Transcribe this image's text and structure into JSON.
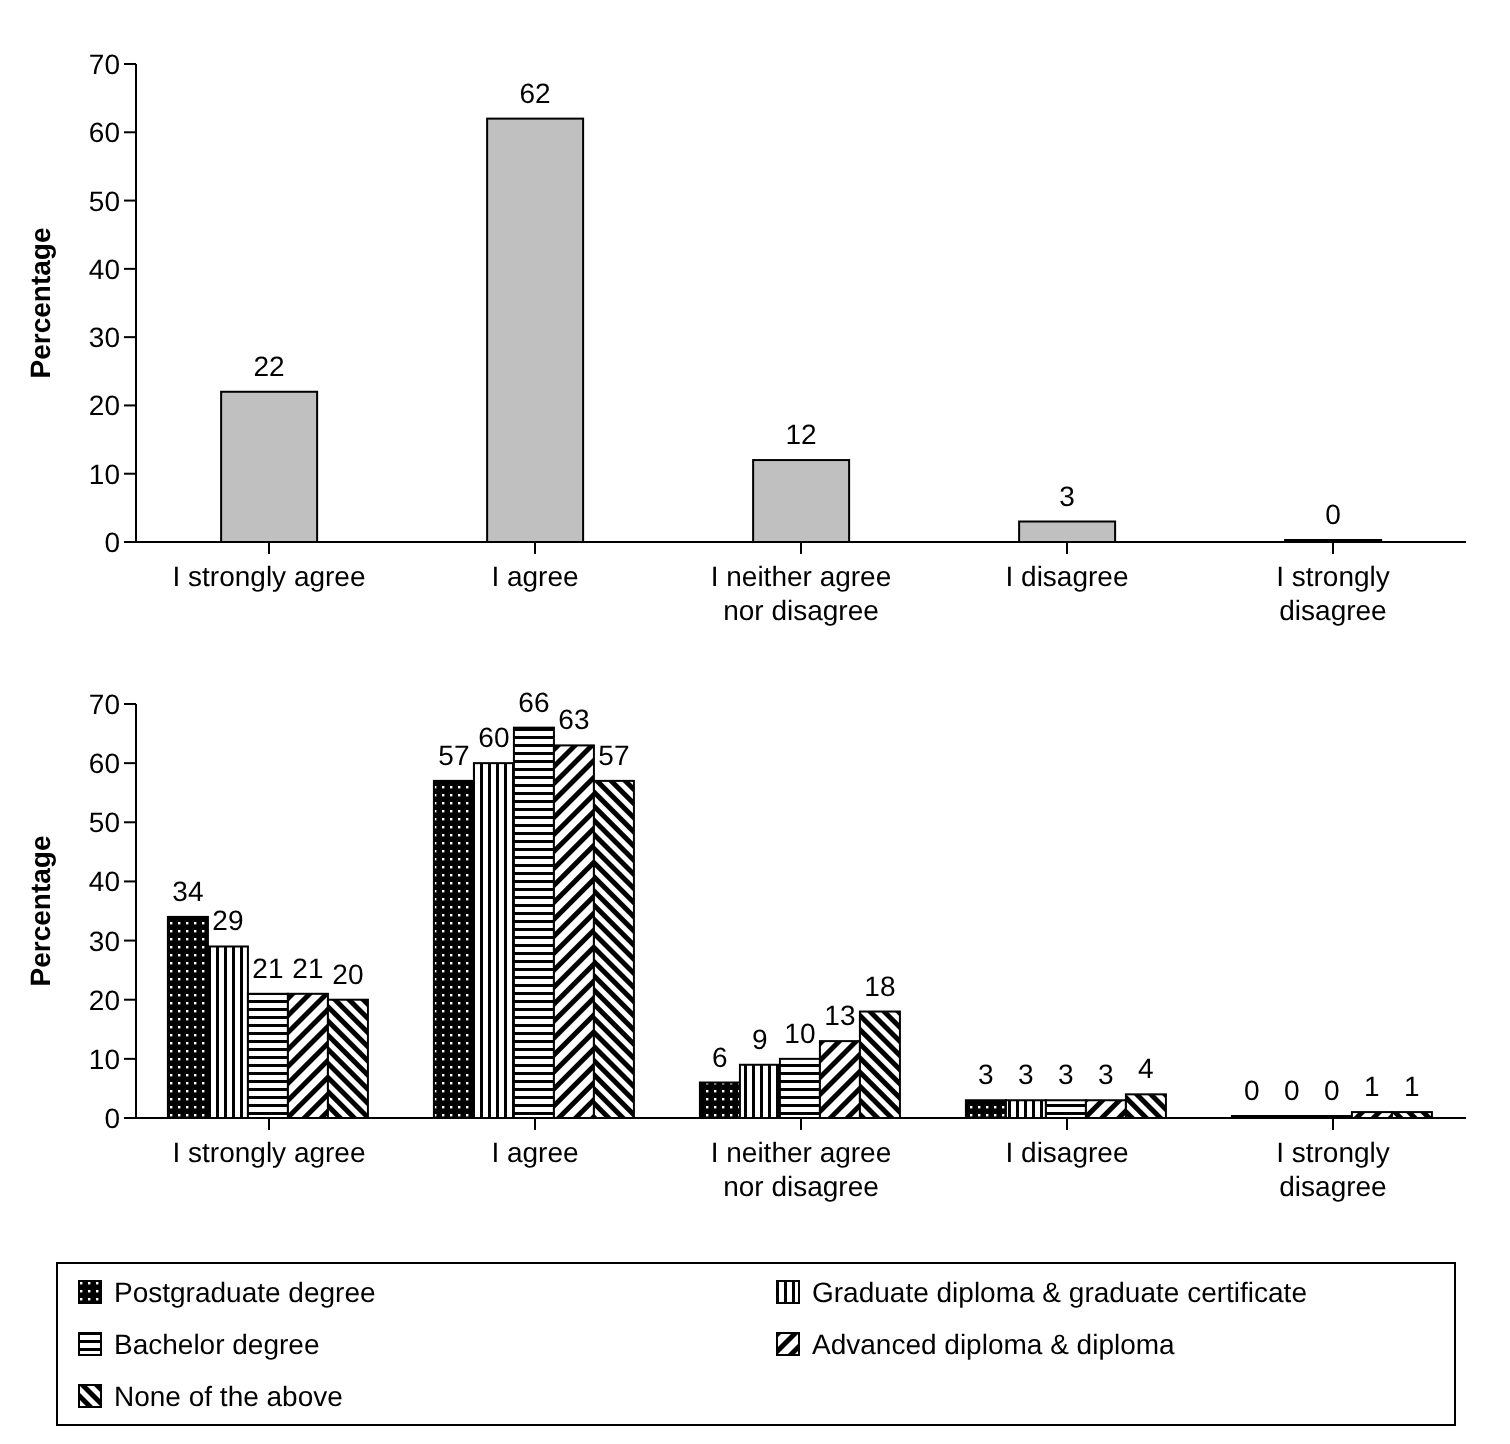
{
  "chart_data": [
    {
      "type": "bar",
      "ylabel": "Percentage",
      "categories": [
        "I strongly agree",
        "I agree",
        "I neither agree nor disagree",
        "I disagree",
        "I strongly disagree"
      ],
      "values": [
        22,
        62,
        12,
        3,
        0
      ],
      "color": "#c0c0c0",
      "ylim": [
        0,
        70
      ],
      "yticks": [
        0,
        10,
        20,
        30,
        40,
        50,
        60,
        70
      ],
      "data_labels": true
    },
    {
      "type": "bar",
      "ylabel": "Percentage",
      "categories": [
        "I strongly agree",
        "I agree",
        "I neither agree nor disagree",
        "I disagree",
        "I strongly disagree"
      ],
      "series": [
        {
          "name": "Postgraduate degree",
          "color": "#000000",
          "values": [
            34,
            57,
            6,
            3,
            0
          ]
        },
        {
          "name": "Graduate diploma & graduate certificate",
          "color": "#000000",
          "values": [
            29,
            60,
            9,
            3,
            0
          ]
        },
        {
          "name": "Bachelor degree",
          "color": "#000000",
          "values": [
            21,
            66,
            10,
            3,
            0
          ]
        },
        {
          "name": "Advanced diploma & diploma",
          "color": "#000000",
          "values": [
            21,
            63,
            13,
            3,
            1
          ]
        },
        {
          "name": "None of the above",
          "color": "#000000",
          "values": [
            20,
            57,
            18,
            4,
            1
          ]
        }
      ],
      "ylim": [
        0,
        70
      ],
      "yticks": [
        0,
        10,
        20,
        30,
        40,
        50,
        60,
        70
      ],
      "data_labels": true,
      "legend": "bottom"
    }
  ]
}
